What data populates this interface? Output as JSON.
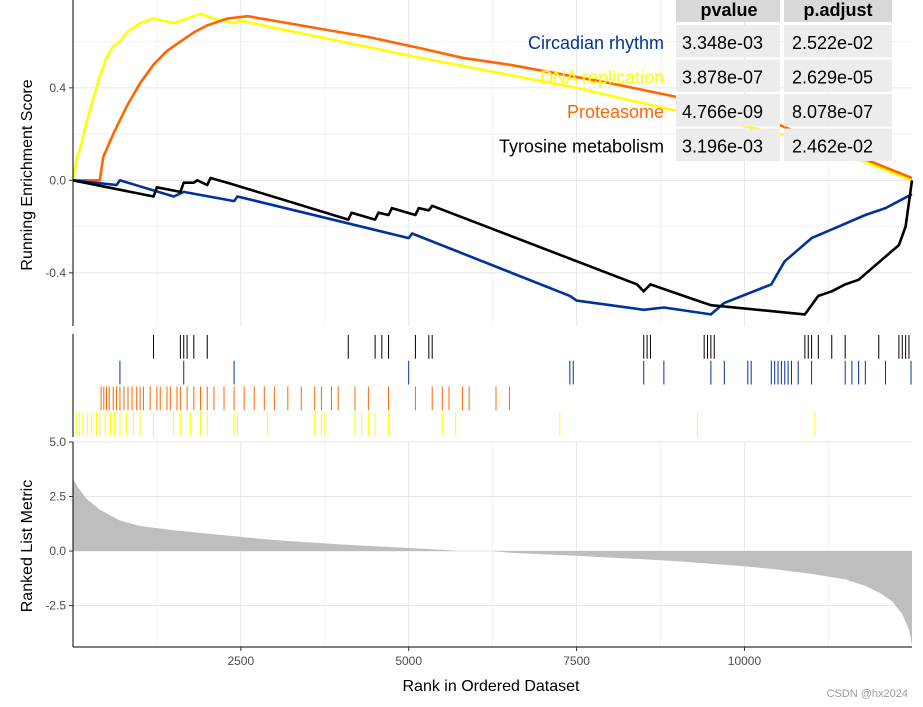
{
  "chart_data": {
    "type": "line",
    "x_range": [
      1,
      12495
    ],
    "xlabel": "Rank in Ordered Dataset",
    "x_ticks": [
      2500,
      5000,
      7500,
      10000
    ],
    "x_tick_labels": [
      "2500",
      "5000",
      "7500",
      "10000"
    ],
    "es_panel": {
      "ylabel": "Running Enrichment Score",
      "ylim": [
        -0.63,
        0.78
      ],
      "y_ticks": [
        -0.4,
        0.0,
        0.4
      ],
      "y_tick_labels": [
        "-0.4",
        "0.0",
        "0.4"
      ]
    },
    "metric_panel": {
      "ylabel": "Ranked List Metric",
      "ylim": [
        -4.4,
        5.0
      ],
      "y_ticks": [
        -2.5,
        0.0,
        2.5,
        5.0
      ],
      "y_tick_labels": [
        "-2.5",
        "0.0",
        "2.5",
        "5.0"
      ],
      "curve": [
        [
          1,
          3.3
        ],
        [
          80,
          2.9
        ],
        [
          200,
          2.4
        ],
        [
          400,
          1.9
        ],
        [
          700,
          1.4
        ],
        [
          1000,
          1.15
        ],
        [
          1500,
          0.95
        ],
        [
          2000,
          0.8
        ],
        [
          2500,
          0.65
        ],
        [
          3000,
          0.5
        ],
        [
          3500,
          0.4
        ],
        [
          4000,
          0.3
        ],
        [
          4500,
          0.22
        ],
        [
          5000,
          0.14
        ],
        [
          5500,
          0.06
        ],
        [
          5750,
          0.0
        ],
        [
          6250,
          0.0
        ],
        [
          6500,
          -0.08
        ],
        [
          7000,
          -0.15
        ],
        [
          7500,
          -0.22
        ],
        [
          8000,
          -0.3
        ],
        [
          8500,
          -0.38
        ],
        [
          9000,
          -0.47
        ],
        [
          9500,
          -0.58
        ],
        [
          10000,
          -0.7
        ],
        [
          10500,
          -0.85
        ],
        [
          11000,
          -1.05
        ],
        [
          11500,
          -1.3
        ],
        [
          11800,
          -1.6
        ],
        [
          12000,
          -1.9
        ],
        [
          12200,
          -2.3
        ],
        [
          12350,
          -2.9
        ],
        [
          12450,
          -3.6
        ],
        [
          12495,
          -4.3
        ]
      ]
    },
    "table": {
      "columns": [
        "pvalue",
        "p.adjust"
      ],
      "rows": [
        {
          "name": "Circadian rhythm",
          "pvalue": "3.348e-03",
          "padjust": "2.522e-02"
        },
        {
          "name": "DNA replication",
          "pvalue": "3.878e-07",
          "padjust": "2.629e-05"
        },
        {
          "name": "Proteasome",
          "pvalue": "4.766e-09",
          "padjust": "8.078e-07"
        },
        {
          "name": "Tyrosine metabolism",
          "pvalue": "3.196e-03",
          "padjust": "2.462e-02"
        }
      ]
    },
    "series": [
      {
        "name": "Circadian rhythm",
        "color": "#003399",
        "points": [
          [
            0,
            0.0
          ],
          [
            650,
            -0.02
          ],
          [
            700,
            0.0
          ],
          [
            1500,
            -0.07
          ],
          [
            1650,
            -0.05
          ],
          [
            2400,
            -0.09
          ],
          [
            2450,
            -0.07
          ],
          [
            5000,
            -0.25
          ],
          [
            5050,
            -0.23
          ],
          [
            7400,
            -0.5
          ],
          [
            7500,
            -0.52
          ],
          [
            8500,
            -0.56
          ],
          [
            8800,
            -0.55
          ],
          [
            9500,
            -0.58
          ],
          [
            9700,
            -0.53
          ],
          [
            10400,
            -0.45
          ],
          [
            10500,
            -0.4
          ],
          [
            10600,
            -0.35
          ],
          [
            10800,
            -0.3
          ],
          [
            11000,
            -0.25
          ],
          [
            11400,
            -0.2
          ],
          [
            11800,
            -0.15
          ],
          [
            12100,
            -0.12
          ],
          [
            12495,
            -0.06
          ]
        ],
        "hits": [
          700,
          1650,
          2400,
          5000,
          7400,
          7450,
          8500,
          8800,
          9500,
          9700,
          10050,
          10100,
          10400,
          10450,
          10500,
          10550,
          10600,
          10650,
          10700,
          10800,
          11000,
          11500,
          11600,
          11700,
          11800,
          12100,
          12495
        ]
      },
      {
        "name": "DNA replication",
        "color": "#FFFF00",
        "points": [
          [
            0,
            0.0
          ],
          [
            60,
            0.1
          ],
          [
            120,
            0.15
          ],
          [
            200,
            0.25
          ],
          [
            300,
            0.35
          ],
          [
            400,
            0.45
          ],
          [
            500,
            0.53
          ],
          [
            600,
            0.58
          ],
          [
            700,
            0.6
          ],
          [
            800,
            0.64
          ],
          [
            1000,
            0.68
          ],
          [
            1200,
            0.7
          ],
          [
            1500,
            0.68
          ],
          [
            1900,
            0.72
          ],
          [
            2100,
            0.7
          ],
          [
            2400,
            0.68
          ],
          [
            2500,
            0.69
          ],
          [
            5000,
            0.54
          ],
          [
            7500,
            0.4
          ],
          [
            9000,
            0.3
          ],
          [
            11000,
            0.17
          ],
          [
            12495,
            0.0
          ]
        ],
        "hits": [
          50,
          100,
          150,
          220,
          280,
          350,
          400,
          480,
          560,
          620,
          700,
          800,
          900,
          1000,
          1200,
          1500,
          1600,
          1750,
          1900,
          2000,
          2400,
          2450,
          2900,
          3600,
          3700,
          3750,
          4200,
          4300,
          4400,
          4500,
          4700,
          5500,
          5700,
          7250,
          9300,
          11050
        ]
      },
      {
        "name": "Proteasome",
        "color": "#FF6600",
        "points": [
          [
            0,
            0.0
          ],
          [
            400,
            0.0
          ],
          [
            450,
            0.1
          ],
          [
            600,
            0.2
          ],
          [
            800,
            0.32
          ],
          [
            1000,
            0.42
          ],
          [
            1200,
            0.5
          ],
          [
            1400,
            0.56
          ],
          [
            1600,
            0.6
          ],
          [
            1800,
            0.64
          ],
          [
            2000,
            0.67
          ],
          [
            2300,
            0.7
          ],
          [
            2600,
            0.71
          ],
          [
            3200,
            0.68
          ],
          [
            3800,
            0.65
          ],
          [
            4400,
            0.62
          ],
          [
            5200,
            0.57
          ],
          [
            5800,
            0.53
          ],
          [
            6500,
            0.5
          ],
          [
            8000,
            0.42
          ],
          [
            10000,
            0.3
          ],
          [
            12495,
            0.01
          ]
        ],
        "hits": [
          420,
          460,
          500,
          540,
          600,
          650,
          700,
          760,
          820,
          880,
          950,
          1000,
          1050,
          1150,
          1250,
          1300,
          1400,
          1450,
          1550,
          1600,
          1700,
          1800,
          1900,
          2000,
          2100,
          2250,
          2400,
          2550,
          2700,
          2850,
          3000,
          3200,
          3400,
          3600,
          3700,
          3850,
          3950,
          4200,
          4400,
          4700,
          5100,
          5350,
          5500,
          5600,
          5800,
          5900,
          6300,
          6500
        ]
      },
      {
        "name": "Tyrosine metabolism",
        "color": "#000000",
        "points": [
          [
            0,
            0.0
          ],
          [
            1200,
            -0.07
          ],
          [
            1250,
            -0.03
          ],
          [
            1600,
            -0.05
          ],
          [
            1650,
            -0.01
          ],
          [
            1800,
            -0.01
          ],
          [
            1850,
            0.0
          ],
          [
            2000,
            -0.02
          ],
          [
            2050,
            0.01
          ],
          [
            2300,
            -0.01
          ],
          [
            4100,
            -0.17
          ],
          [
            4150,
            -0.14
          ],
          [
            4500,
            -0.17
          ],
          [
            4550,
            -0.14
          ],
          [
            4700,
            -0.15
          ],
          [
            4750,
            -0.12
          ],
          [
            5100,
            -0.15
          ],
          [
            5150,
            -0.12
          ],
          [
            5300,
            -0.13
          ],
          [
            5350,
            -0.11
          ],
          [
            8400,
            -0.45
          ],
          [
            8500,
            -0.48
          ],
          [
            8600,
            -0.45
          ],
          [
            9300,
            -0.52
          ],
          [
            9500,
            -0.54
          ],
          [
            10900,
            -0.58
          ],
          [
            11100,
            -0.5
          ],
          [
            11300,
            -0.48
          ],
          [
            11500,
            -0.45
          ],
          [
            11700,
            -0.43
          ],
          [
            11900,
            -0.38
          ],
          [
            12100,
            -0.33
          ],
          [
            12300,
            -0.28
          ],
          [
            12400,
            -0.2
          ],
          [
            12495,
            0.0
          ]
        ],
        "hits": [
          1200,
          1600,
          1650,
          1700,
          1800,
          2000,
          4100,
          4500,
          4600,
          4700,
          5100,
          5300,
          5350,
          8500,
          8550,
          8600,
          9400,
          9450,
          9500,
          9550,
          10900,
          10950,
          11000,
          11100,
          11300,
          11500,
          12000,
          12300,
          12350,
          12400,
          12450
        ]
      }
    ]
  },
  "watermark": "CSDN @hx2024"
}
